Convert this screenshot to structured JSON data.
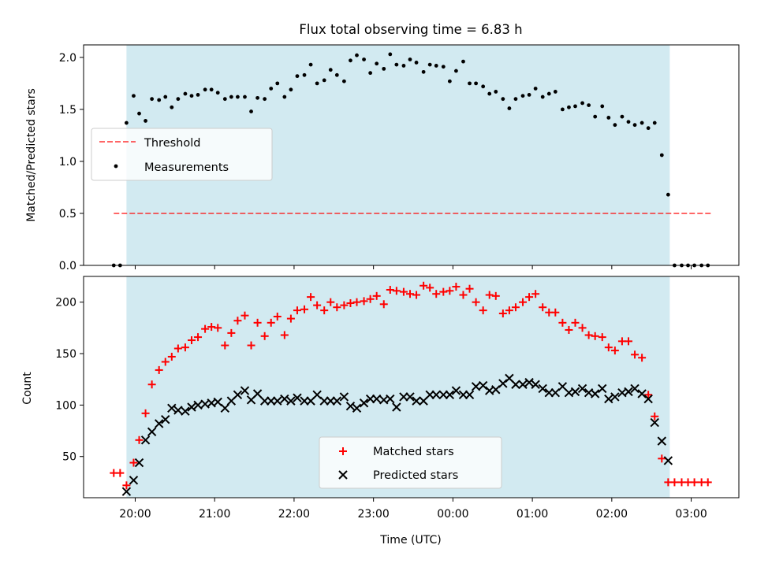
{
  "colors": {
    "background": "#ffffff",
    "observing_window": "#add8e6",
    "threshold": "#ff0000",
    "measurements": "#000000",
    "matched": "#ff0000",
    "predicted": "#000000"
  },
  "chart_data": [
    {
      "type": "scatter",
      "title": "Flux total observing time = 6.83 h",
      "ylabel": "Matched/Predicted stars",
      "xlabel": "",
      "x_unit": "hours since 20:00 UTC (evening)",
      "xlim": [
        -0.65,
        7.6
      ],
      "ylim": [
        0.0,
        2.12
      ],
      "yticks": [
        0.0,
        0.5,
        1.0,
        1.5,
        2.0
      ],
      "ytick_labels": [
        "0.0",
        "0.5",
        "1.0",
        "1.5",
        "2.0"
      ],
      "xticks": [
        0,
        1,
        2,
        3,
        4,
        5,
        6,
        7
      ],
      "xtick_labels": [],
      "observing_window": [
        -0.11,
        6.73
      ],
      "legend": {
        "placement": "center-left",
        "entries": [
          "Threshold",
          "Measurements"
        ]
      },
      "series": [
        {
          "name": "Threshold",
          "kind": "line",
          "style": "dashed",
          "x": [
            -0.27,
            7.25
          ],
          "y": [
            0.5,
            0.5
          ]
        },
        {
          "name": "Measurements",
          "kind": "scatter",
          "marker": "dot",
          "x": [
            -0.27,
            -0.19,
            -0.11,
            -0.02,
            0.05,
            0.13,
            0.21,
            0.3,
            0.38,
            0.46,
            0.54,
            0.63,
            0.71,
            0.79,
            0.88,
            0.96,
            1.04,
            1.13,
            1.21,
            1.29,
            1.38,
            1.46,
            1.54,
            1.63,
            1.71,
            1.79,
            1.88,
            1.96,
            2.04,
            2.13,
            2.21,
            2.29,
            2.38,
            2.46,
            2.54,
            2.63,
            2.71,
            2.79,
            2.88,
            2.96,
            3.04,
            3.13,
            3.21,
            3.29,
            3.38,
            3.46,
            3.54,
            3.63,
            3.71,
            3.79,
            3.88,
            3.96,
            4.04,
            4.13,
            4.21,
            4.29,
            4.38,
            4.46,
            4.54,
            4.63,
            4.71,
            4.79,
            4.88,
            4.96,
            5.04,
            5.13,
            5.21,
            5.29,
            5.38,
            5.46,
            5.54,
            5.63,
            5.71,
            5.79,
            5.88,
            5.96,
            6.04,
            6.13,
            6.21,
            6.29,
            6.38,
            6.46,
            6.54,
            6.63,
            6.71,
            6.79,
            6.88,
            6.96,
            7.04,
            7.13,
            7.21
          ],
          "y": [
            0.0,
            0.0,
            1.37,
            1.63,
            1.46,
            1.39,
            1.6,
            1.59,
            1.62,
            1.52,
            1.6,
            1.65,
            1.63,
            1.64,
            1.69,
            1.69,
            1.66,
            1.6,
            1.62,
            1.62,
            1.62,
            1.48,
            1.61,
            1.6,
            1.7,
            1.75,
            1.62,
            1.69,
            1.82,
            1.83,
            1.93,
            1.75,
            1.78,
            1.88,
            1.83,
            1.77,
            1.97,
            2.02,
            1.98,
            1.85,
            1.94,
            1.89,
            2.03,
            1.93,
            1.92,
            1.98,
            1.95,
            1.86,
            1.93,
            1.92,
            1.91,
            1.77,
            1.87,
            1.96,
            1.75,
            1.75,
            1.72,
            1.65,
            1.67,
            1.6,
            1.51,
            1.6,
            1.63,
            1.64,
            1.7,
            1.62,
            1.65,
            1.67,
            1.5,
            1.52,
            1.53,
            1.56,
            1.54,
            1.43,
            1.53,
            1.42,
            1.35,
            1.43,
            1.38,
            1.35,
            1.37,
            1.32,
            1.37,
            1.06,
            0.68,
            0.0,
            0.0,
            0.0,
            0.0,
            0.0,
            0.0
          ]
        }
      ]
    },
    {
      "type": "scatter",
      "title": "",
      "ylabel": "Count",
      "xlabel": "Time (UTC)",
      "x_unit": "hours since 20:00 UTC (evening)",
      "xlim": [
        -0.65,
        7.6
      ],
      "ylim": [
        10,
        225
      ],
      "yticks": [
        50,
        100,
        150,
        200
      ],
      "ytick_labels": [
        "50",
        "100",
        "150",
        "200"
      ],
      "xticks": [
        0,
        1,
        2,
        3,
        4,
        5,
        6,
        7
      ],
      "xtick_labels": [
        "20:00",
        "21:00",
        "22:00",
        "23:00",
        "00:00",
        "01:00",
        "02:00",
        "03:00"
      ],
      "observing_window": [
        -0.11,
        6.73
      ],
      "legend": {
        "placement": "lower-center",
        "entries": [
          "Matched stars",
          "Predicted stars"
        ]
      },
      "series": [
        {
          "name": "Matched stars",
          "kind": "scatter",
          "marker": "plus",
          "x": [
            -0.27,
            -0.19,
            -0.11,
            -0.02,
            0.05,
            0.13,
            0.21,
            0.3,
            0.38,
            0.46,
            0.54,
            0.63,
            0.71,
            0.79,
            0.88,
            0.96,
            1.04,
            1.13,
            1.21,
            1.29,
            1.38,
            1.46,
            1.54,
            1.63,
            1.71,
            1.79,
            1.88,
            1.96,
            2.04,
            2.13,
            2.21,
            2.29,
            2.38,
            2.46,
            2.54,
            2.63,
            2.71,
            2.79,
            2.88,
            2.96,
            3.04,
            3.13,
            3.21,
            3.29,
            3.38,
            3.46,
            3.54,
            3.63,
            3.71,
            3.79,
            3.88,
            3.96,
            4.04,
            4.13,
            4.21,
            4.29,
            4.38,
            4.46,
            4.54,
            4.63,
            4.71,
            4.79,
            4.88,
            4.96,
            5.04,
            5.13,
            5.21,
            5.29,
            5.38,
            5.46,
            5.54,
            5.63,
            5.71,
            5.79,
            5.88,
            5.96,
            6.04,
            6.13,
            6.21,
            6.29,
            6.38,
            6.46,
            6.54,
            6.63,
            6.71,
            6.79,
            6.88,
            6.96,
            7.04,
            7.13,
            7.21
          ],
          "y": [
            34,
            34,
            22,
            44,
            66,
            92,
            120,
            134,
            142,
            147,
            155,
            156,
            163,
            166,
            174,
            176,
            175,
            158,
            170,
            182,
            187,
            158,
            180,
            167,
            180,
            186,
            168,
            184,
            192,
            193,
            205,
            197,
            192,
            200,
            195,
            197,
            199,
            200,
            201,
            203,
            206,
            198,
            212,
            211,
            210,
            208,
            207,
            216,
            214,
            208,
            210,
            211,
            215,
            207,
            213,
            200,
            192,
            207,
            206,
            189,
            192,
            195,
            200,
            205,
            208,
            195,
            190,
            190,
            180,
            173,
            180,
            175,
            168,
            167,
            166,
            156,
            153,
            162,
            162,
            149,
            146,
            110,
            89,
            48,
            25,
            25,
            25,
            25,
            25,
            25,
            25
          ]
        },
        {
          "name": "Predicted stars",
          "kind": "scatter",
          "marker": "x",
          "x": [
            -0.11,
            -0.02,
            0.05,
            0.13,
            0.21,
            0.3,
            0.38,
            0.46,
            0.54,
            0.63,
            0.71,
            0.79,
            0.88,
            0.96,
            1.04,
            1.13,
            1.21,
            1.29,
            1.38,
            1.46,
            1.54,
            1.63,
            1.71,
            1.79,
            1.88,
            1.96,
            2.04,
            2.13,
            2.21,
            2.29,
            2.38,
            2.46,
            2.54,
            2.63,
            2.71,
            2.79,
            2.88,
            2.96,
            3.04,
            3.13,
            3.21,
            3.29,
            3.38,
            3.46,
            3.54,
            3.63,
            3.71,
            3.79,
            3.88,
            3.96,
            4.04,
            4.13,
            4.21,
            4.29,
            4.38,
            4.46,
            4.54,
            4.63,
            4.71,
            4.79,
            4.88,
            4.96,
            5.04,
            5.13,
            5.21,
            5.29,
            5.38,
            5.46,
            5.54,
            5.63,
            5.71,
            5.79,
            5.88,
            5.96,
            6.04,
            6.13,
            6.21,
            6.29,
            6.38,
            6.46,
            6.54,
            6.63,
            6.71
          ],
          "y": [
            16,
            27,
            44,
            66,
            74,
            82,
            86,
            97,
            95,
            94,
            98,
            100,
            101,
            102,
            103,
            97,
            104,
            110,
            114,
            105,
            111,
            104,
            104,
            104,
            106,
            104,
            107,
            104,
            104,
            110,
            104,
            104,
            104,
            108,
            99,
            97,
            102,
            106,
            106,
            105,
            106,
            98,
            108,
            108,
            104,
            104,
            110,
            110,
            110,
            110,
            114,
            110,
            110,
            118,
            119,
            114,
            115,
            121,
            126,
            120,
            120,
            122,
            120,
            116,
            112,
            112,
            118,
            112,
            113,
            116,
            112,
            111,
            116,
            106,
            108,
            112,
            113,
            116,
            111,
            106,
            83,
            65,
            46
          ],
          "y_tail_note": ""
        }
      ]
    }
  ]
}
